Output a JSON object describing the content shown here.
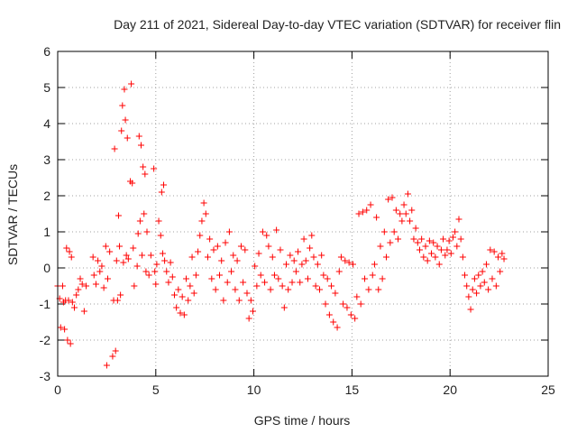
{
  "chart_data": {
    "type": "scatter",
    "title": "Day 211 of 2021, Sidereal Day-to-day VTEC variation (SDTVAR) for receiver flin",
    "xlabel": "GPS time / hours",
    "ylabel": "SDTVAR / TECUs",
    "xlim": [
      0,
      25
    ],
    "ylim": [
      -3,
      6
    ],
    "x_ticks": [
      0,
      5,
      10,
      15,
      20,
      25
    ],
    "y_ticks": [
      -3,
      -2,
      -1,
      0,
      1,
      2,
      3,
      4,
      5,
      6
    ],
    "grid": true,
    "marker": "+",
    "color": "#ff0000",
    "series": [
      {
        "name": "SDTVAR",
        "points": [
          [
            0.0,
            -0.5
          ],
          [
            0.1,
            -0.85
          ],
          [
            0.15,
            -1.65
          ],
          [
            0.25,
            -0.5
          ],
          [
            0.3,
            -0.95
          ],
          [
            0.35,
            -1.7
          ],
          [
            0.4,
            -0.9
          ],
          [
            0.45,
            0.55
          ],
          [
            0.5,
            -2.0
          ],
          [
            0.55,
            -0.9
          ],
          [
            0.6,
            0.45
          ],
          [
            0.65,
            -2.1
          ],
          [
            0.7,
            0.3
          ],
          [
            0.75,
            -0.95
          ],
          [
            0.85,
            -1.1
          ],
          [
            0.95,
            -0.75
          ],
          [
            1.05,
            -0.6
          ],
          [
            1.15,
            -0.3
          ],
          [
            1.25,
            -0.45
          ],
          [
            1.35,
            -1.2
          ],
          [
            1.45,
            -0.5
          ],
          [
            1.8,
            0.3
          ],
          [
            1.85,
            -0.2
          ],
          [
            1.95,
            -0.45
          ],
          [
            2.05,
            0.2
          ],
          [
            2.15,
            -0.1
          ],
          [
            2.25,
            0.05
          ],
          [
            2.35,
            -0.55
          ],
          [
            2.45,
            0.6
          ],
          [
            2.5,
            -2.7
          ],
          [
            2.55,
            -0.3
          ],
          [
            2.65,
            0.45
          ],
          [
            2.8,
            -2.45
          ],
          [
            2.85,
            -0.9
          ],
          [
            2.9,
            3.3
          ],
          [
            2.95,
            -2.3
          ],
          [
            3.0,
            0.2
          ],
          [
            3.05,
            -0.9
          ],
          [
            3.1,
            1.45
          ],
          [
            3.15,
            0.6
          ],
          [
            3.2,
            -0.75
          ],
          [
            3.25,
            3.8
          ],
          [
            3.3,
            4.5
          ],
          [
            3.35,
            0.15
          ],
          [
            3.4,
            4.95
          ],
          [
            3.45,
            4.1
          ],
          [
            3.5,
            0.35
          ],
          [
            3.55,
            3.6
          ],
          [
            3.6,
            0.25
          ],
          [
            3.7,
            2.4
          ],
          [
            3.75,
            5.1
          ],
          [
            3.8,
            2.35
          ],
          [
            3.85,
            0.55
          ],
          [
            3.9,
            -0.5
          ],
          [
            4.05,
            0.05
          ],
          [
            4.1,
            0.95
          ],
          [
            4.15,
            3.65
          ],
          [
            4.2,
            1.3
          ],
          [
            4.25,
            3.4
          ],
          [
            4.3,
            0.35
          ],
          [
            4.35,
            2.8
          ],
          [
            4.4,
            1.5
          ],
          [
            4.45,
            2.6
          ],
          [
            4.5,
            -0.1
          ],
          [
            4.55,
            1.0
          ],
          [
            4.65,
            -0.2
          ],
          [
            4.75,
            0.35
          ],
          [
            4.9,
            2.75
          ],
          [
            4.95,
            -0.1
          ],
          [
            5.0,
            -0.45
          ],
          [
            5.05,
            0.1
          ],
          [
            5.15,
            1.3
          ],
          [
            5.25,
            0.9
          ],
          [
            5.3,
            2.1
          ],
          [
            5.35,
            0.4
          ],
          [
            5.4,
            2.3
          ],
          [
            5.45,
            0.2
          ],
          [
            5.55,
            -0.1
          ],
          [
            5.65,
            -0.4
          ],
          [
            5.75,
            0.15
          ],
          [
            5.85,
            -0.25
          ],
          [
            5.95,
            -0.75
          ],
          [
            6.05,
            -1.1
          ],
          [
            6.15,
            -0.6
          ],
          [
            6.25,
            -1.25
          ],
          [
            6.35,
            -0.8
          ],
          [
            6.45,
            -1.3
          ],
          [
            6.55,
            -0.3
          ],
          [
            6.65,
            -0.9
          ],
          [
            6.75,
            -0.5
          ],
          [
            6.85,
            0.3
          ],
          [
            6.95,
            -0.7
          ],
          [
            7.05,
            -0.2
          ],
          [
            7.15,
            0.45
          ],
          [
            7.25,
            0.9
          ],
          [
            7.35,
            1.3
          ],
          [
            7.45,
            1.8
          ],
          [
            7.55,
            1.5
          ],
          [
            7.65,
            0.3
          ],
          [
            7.75,
            0.8
          ],
          [
            7.85,
            -0.3
          ],
          [
            7.95,
            0.5
          ],
          [
            8.05,
            -0.6
          ],
          [
            8.15,
            0.6
          ],
          [
            8.25,
            -0.2
          ],
          [
            8.35,
            0.2
          ],
          [
            8.45,
            -0.9
          ],
          [
            8.55,
            0.7
          ],
          [
            8.65,
            -0.4
          ],
          [
            8.75,
            1.0
          ],
          [
            8.85,
            -0.1
          ],
          [
            8.95,
            0.35
          ],
          [
            9.05,
            -0.6
          ],
          [
            9.15,
            0.2
          ],
          [
            9.25,
            -0.9
          ],
          [
            9.35,
            0.6
          ],
          [
            9.45,
            -0.4
          ],
          [
            9.55,
            0.5
          ],
          [
            9.65,
            -0.7
          ],
          [
            9.75,
            -1.4
          ],
          [
            9.85,
            -0.9
          ],
          [
            9.95,
            -1.2
          ],
          [
            10.05,
            0.05
          ],
          [
            10.15,
            -0.5
          ],
          [
            10.25,
            0.4
          ],
          [
            10.35,
            -0.2
          ],
          [
            10.45,
            1.0
          ],
          [
            10.55,
            -0.4
          ],
          [
            10.65,
            0.9
          ],
          [
            10.75,
            0.6
          ],
          [
            10.85,
            -0.6
          ],
          [
            10.95,
            0.3
          ],
          [
            11.05,
            -0.2
          ],
          [
            11.15,
            1.05
          ],
          [
            11.25,
            -0.3
          ],
          [
            11.35,
            0.5
          ],
          [
            11.45,
            -0.5
          ],
          [
            11.55,
            -1.1
          ],
          [
            11.65,
            0.1
          ],
          [
            11.75,
            -0.6
          ],
          [
            11.85,
            0.35
          ],
          [
            11.95,
            -0.4
          ],
          [
            12.05,
            0.2
          ],
          [
            12.15,
            -0.1
          ],
          [
            12.25,
            0.45
          ],
          [
            12.35,
            -0.4
          ],
          [
            12.45,
            0.1
          ],
          [
            12.55,
            0.8
          ],
          [
            12.65,
            0.2
          ],
          [
            12.75,
            -0.3
          ],
          [
            12.85,
            0.55
          ],
          [
            12.95,
            0.9
          ],
          [
            13.05,
            0.3
          ],
          [
            13.15,
            -0.5
          ],
          [
            13.25,
            0.1
          ],
          [
            13.35,
            -0.6
          ],
          [
            13.45,
            0.35
          ],
          [
            13.55,
            -0.2
          ],
          [
            13.65,
            -1.0
          ],
          [
            13.75,
            -0.3
          ],
          [
            13.85,
            -1.3
          ],
          [
            13.95,
            -0.5
          ],
          [
            14.05,
            -1.5
          ],
          [
            14.15,
            -0.7
          ],
          [
            14.25,
            -1.65
          ],
          [
            14.35,
            -0.1
          ],
          [
            14.45,
            0.3
          ],
          [
            14.55,
            -1.0
          ],
          [
            14.65,
            0.2
          ],
          [
            14.75,
            -1.1
          ],
          [
            14.85,
            0.15
          ],
          [
            14.95,
            -1.3
          ],
          [
            15.05,
            0.1
          ],
          [
            15.15,
            -1.4
          ],
          [
            15.25,
            -0.8
          ],
          [
            15.35,
            1.5
          ],
          [
            15.45,
            -1.0
          ],
          [
            15.55,
            1.55
          ],
          [
            15.65,
            -0.3
          ],
          [
            15.75,
            1.6
          ],
          [
            15.85,
            -0.6
          ],
          [
            15.95,
            1.75
          ],
          [
            16.05,
            -0.2
          ],
          [
            16.15,
            0.1
          ],
          [
            16.25,
            1.4
          ],
          [
            16.35,
            -0.6
          ],
          [
            16.45,
            0.6
          ],
          [
            16.55,
            -0.3
          ],
          [
            16.65,
            1.0
          ],
          [
            16.75,
            0.3
          ],
          [
            16.85,
            1.9
          ],
          [
            16.95,
            0.7
          ],
          [
            17.05,
            1.95
          ],
          [
            17.15,
            1.0
          ],
          [
            17.25,
            1.6
          ],
          [
            17.35,
            0.8
          ],
          [
            17.45,
            1.5
          ],
          [
            17.55,
            1.3
          ],
          [
            17.65,
            1.75
          ],
          [
            17.75,
            1.5
          ],
          [
            17.85,
            2.05
          ],
          [
            17.95,
            1.3
          ],
          [
            18.05,
            1.6
          ],
          [
            18.15,
            0.8
          ],
          [
            18.25,
            1.1
          ],
          [
            18.35,
            0.7
          ],
          [
            18.45,
            0.5
          ],
          [
            18.55,
            0.8
          ],
          [
            18.65,
            0.3
          ],
          [
            18.75,
            0.6
          ],
          [
            18.85,
            0.2
          ],
          [
            18.95,
            0.75
          ],
          [
            19.05,
            0.4
          ],
          [
            19.15,
            0.7
          ],
          [
            19.25,
            0.3
          ],
          [
            19.35,
            0.6
          ],
          [
            19.45,
            0.1
          ],
          [
            19.55,
            0.5
          ],
          [
            19.65,
            0.8
          ],
          [
            19.75,
            0.35
          ],
          [
            19.85,
            0.5
          ],
          [
            19.95,
            0.75
          ],
          [
            20.05,
            0.4
          ],
          [
            20.15,
            0.85
          ],
          [
            20.25,
            1.0
          ],
          [
            20.35,
            0.6
          ],
          [
            20.45,
            1.35
          ],
          [
            20.55,
            0.8
          ],
          [
            20.65,
            0.3
          ],
          [
            20.75,
            -0.2
          ],
          [
            20.85,
            -0.5
          ],
          [
            20.95,
            -0.8
          ],
          [
            21.05,
            -1.15
          ],
          [
            21.15,
            -0.6
          ],
          [
            21.25,
            -0.3
          ],
          [
            21.35,
            -0.7
          ],
          [
            21.45,
            -0.2
          ],
          [
            21.55,
            -0.5
          ],
          [
            21.65,
            -0.1
          ],
          [
            21.75,
            -0.4
          ],
          [
            21.85,
            0.1
          ],
          [
            21.95,
            -0.6
          ],
          [
            22.05,
            0.5
          ],
          [
            22.15,
            -0.3
          ],
          [
            22.25,
            0.45
          ],
          [
            22.35,
            -0.5
          ],
          [
            22.45,
            0.3
          ],
          [
            22.55,
            -0.1
          ],
          [
            22.65,
            0.4
          ],
          [
            22.75,
            0.25
          ]
        ]
      }
    ]
  }
}
